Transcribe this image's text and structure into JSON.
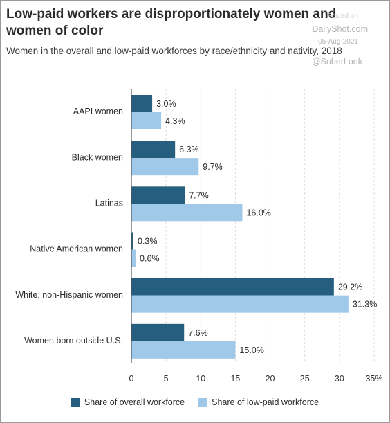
{
  "title": "Low-paid workers are disproportionately women and women of color",
  "subtitle": "Women in the overall and low-paid workforces by race/ethnicity and nativity, 2018",
  "watermark": {
    "faint": "Posted on",
    "site": "DailyShot.com",
    "date": "05-Aug-2021",
    "handle": "@SoberLook"
  },
  "colors": {
    "overall": "#255e7e",
    "low_paid": "#a0c8e9",
    "grid": "#dcdcdc",
    "axis": "#555555"
  },
  "chart_data": {
    "type": "bar",
    "orientation": "horizontal",
    "categories": [
      "AAPI women",
      "Black women",
      "Latinas",
      "Native American women",
      "White, non-Hispanic women",
      "Women born outside U.S."
    ],
    "series": [
      {
        "name": "Share of overall workforce",
        "values": [
          3.0,
          6.3,
          7.7,
          0.3,
          29.2,
          7.6
        ],
        "labels": [
          "3.0%",
          "6.3%",
          "7.7%",
          "0.3%",
          "29.2%",
          "7.6%"
        ]
      },
      {
        "name": "Share of low-paid workforce",
        "values": [
          4.3,
          9.7,
          16.0,
          0.6,
          31.3,
          15.0
        ],
        "labels": [
          "4.3%",
          "9.7%",
          "16.0%",
          "0.6%",
          "31.3%",
          "15.0%"
        ]
      }
    ],
    "xlim": [
      0,
      35
    ],
    "xticks": [
      "0",
      "5",
      "10",
      "15",
      "20",
      "25",
      "30",
      "35%"
    ],
    "xlabel": "",
    "ylabel": "",
    "grid": "vertical dashed",
    "legend": "bottom"
  }
}
